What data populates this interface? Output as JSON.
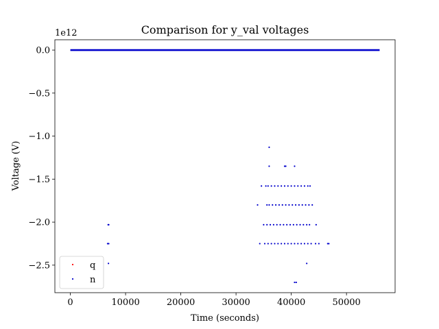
{
  "chart_data": {
    "type": "scatter",
    "title": "Comparison for y_val voltages",
    "xlabel": "Time (seconds)",
    "ylabel": "Voltage (V)",
    "y_offset_label": "1e12",
    "xlim": [
      -2800,
      58800
    ],
    "ylim": [
      -2.82,
      0.12
    ],
    "x_ticks": [
      0,
      10000,
      20000,
      30000,
      40000,
      50000
    ],
    "x_tick_labels": [
      "0",
      "10000",
      "20000",
      "30000",
      "40000",
      "50000"
    ],
    "y_ticks": [
      0.0,
      -0.5,
      -1.0,
      -1.5,
      -2.0,
      -2.5
    ],
    "y_tick_labels": [
      "0.0",
      "−0.5",
      "−1.0",
      "−1.5",
      "−2.0",
      "−2.5"
    ],
    "grid": false,
    "legend_position": "lower-left",
    "series": [
      {
        "name": "q",
        "color": "#ff0000",
        "marker": "dot",
        "points": []
      },
      {
        "name": "n",
        "color": "#0000cc",
        "marker": "dot",
        "baseline": {
          "x_start": 0,
          "x_end": 56000,
          "y": 0.0
        },
        "points": [
          [
            36000,
            -1.13
          ],
          [
            36000,
            -1.35
          ],
          [
            38800,
            -1.35
          ],
          [
            39000,
            -1.35
          ],
          [
            40600,
            -1.35
          ],
          [
            34600,
            -1.58
          ],
          [
            35400,
            -1.58
          ],
          [
            35800,
            -1.58
          ],
          [
            36400,
            -1.58
          ],
          [
            37000,
            -1.58
          ],
          [
            37600,
            -1.58
          ],
          [
            38200,
            -1.58
          ],
          [
            38800,
            -1.58
          ],
          [
            39400,
            -1.58
          ],
          [
            40000,
            -1.58
          ],
          [
            40600,
            -1.58
          ],
          [
            41200,
            -1.58
          ],
          [
            41800,
            -1.58
          ],
          [
            42400,
            -1.58
          ],
          [
            43000,
            -1.58
          ],
          [
            43400,
            -1.58
          ],
          [
            33900,
            -1.8
          ],
          [
            35600,
            -1.8
          ],
          [
            36000,
            -1.8
          ],
          [
            36600,
            -1.8
          ],
          [
            37200,
            -1.8
          ],
          [
            37800,
            -1.8
          ],
          [
            38400,
            -1.8
          ],
          [
            39000,
            -1.8
          ],
          [
            39600,
            -1.8
          ],
          [
            40200,
            -1.8
          ],
          [
            40800,
            -1.8
          ],
          [
            41400,
            -1.8
          ],
          [
            42000,
            -1.8
          ],
          [
            42600,
            -1.8
          ],
          [
            43200,
            -1.8
          ],
          [
            43800,
            -1.8
          ],
          [
            6850,
            -2.03
          ],
          [
            6950,
            -2.03
          ],
          [
            35000,
            -2.03
          ],
          [
            35600,
            -2.03
          ],
          [
            36200,
            -2.03
          ],
          [
            36800,
            -2.03
          ],
          [
            37400,
            -2.03
          ],
          [
            38000,
            -2.03
          ],
          [
            38600,
            -2.03
          ],
          [
            39200,
            -2.03
          ],
          [
            39800,
            -2.03
          ],
          [
            40400,
            -2.03
          ],
          [
            41000,
            -2.03
          ],
          [
            41600,
            -2.03
          ],
          [
            42200,
            -2.03
          ],
          [
            42800,
            -2.03
          ],
          [
            43300,
            -2.03
          ],
          [
            44500,
            -2.03
          ],
          [
            6750,
            -2.25
          ],
          [
            6850,
            -2.25
          ],
          [
            6950,
            -2.25
          ],
          [
            34300,
            -2.25
          ],
          [
            35200,
            -2.25
          ],
          [
            35800,
            -2.25
          ],
          [
            36400,
            -2.25
          ],
          [
            37000,
            -2.25
          ],
          [
            37600,
            -2.25
          ],
          [
            38200,
            -2.25
          ],
          [
            38800,
            -2.25
          ],
          [
            39400,
            -2.25
          ],
          [
            40000,
            -2.25
          ],
          [
            40600,
            -2.25
          ],
          [
            41200,
            -2.25
          ],
          [
            41800,
            -2.25
          ],
          [
            42400,
            -2.25
          ],
          [
            43000,
            -2.25
          ],
          [
            43600,
            -2.25
          ],
          [
            44400,
            -2.25
          ],
          [
            45000,
            -2.25
          ],
          [
            46600,
            -2.25
          ],
          [
            46800,
            -2.25
          ],
          [
            6900,
            -2.48
          ],
          [
            42800,
            -2.48
          ],
          [
            40600,
            -2.7
          ],
          [
            40900,
            -2.7
          ]
        ]
      }
    ]
  }
}
